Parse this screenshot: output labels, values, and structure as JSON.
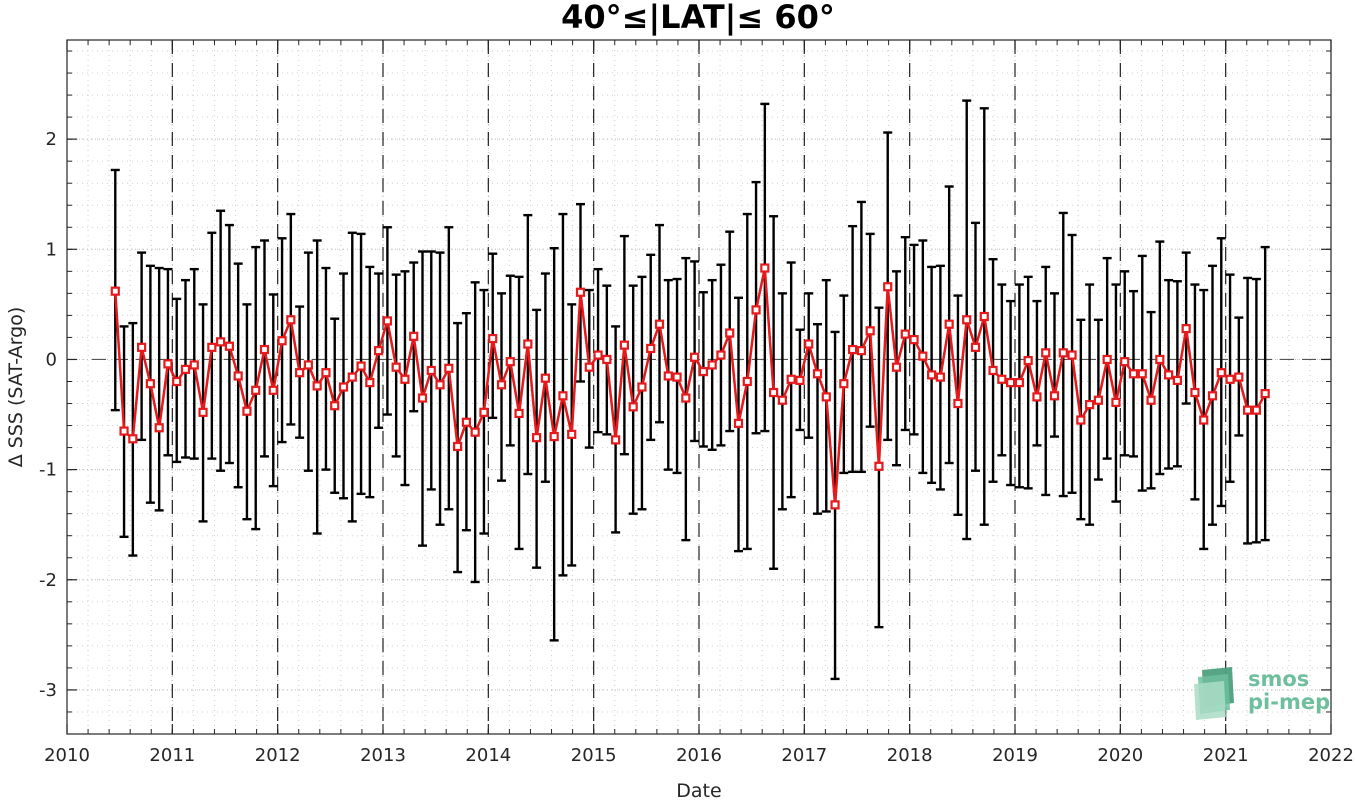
{
  "chart_data": {
    "type": "line",
    "title": "40°≤|LAT|≤ 60°",
    "xlabel": "Date",
    "ylabel": "Δ SSS (SAT-Argo)",
    "xlim": [
      2010,
      2022
    ],
    "ylim": [
      -3.4,
      2.9
    ],
    "xticks": [
      2010,
      2011,
      2012,
      2013,
      2014,
      2015,
      2016,
      2017,
      2018,
      2019,
      2020,
      2021,
      2022
    ],
    "xtick_labels": [
      "2010",
      "2011",
      "2012",
      "2013",
      "2014",
      "2015",
      "2016",
      "2017",
      "2018",
      "2019",
      "2020",
      "2021",
      "2022"
    ],
    "yticks": [
      -3,
      -2,
      -1,
      0,
      1,
      2
    ],
    "ytick_labels": [
      "-3",
      "-2",
      "-1",
      "0",
      "1",
      "2"
    ],
    "grid": true,
    "year_dashed_lines": true,
    "zero_dashed_line": true,
    "series": [
      {
        "color": "#e41a1c",
        "errorbar_color": "#000000",
        "marker": "square",
        "start": [
          2010,
          6
        ],
        "step": "monthly",
        "values": [
          0.62,
          -0.65,
          -0.72,
          0.11,
          -0.22,
          -0.62,
          -0.04,
          -0.2,
          -0.09,
          -0.05,
          -0.48,
          0.11,
          0.16,
          0.12,
          -0.15,
          -0.47,
          -0.28,
          0.09,
          -0.28,
          0.17,
          0.36,
          -0.12,
          -0.05,
          -0.24,
          -0.12,
          -0.42,
          -0.25,
          -0.16,
          -0.06,
          -0.21,
          0.08,
          0.35,
          -0.07,
          -0.18,
          0.21,
          -0.35,
          -0.1,
          -0.23,
          -0.08,
          -0.79,
          -0.57,
          -0.66,
          -0.48,
          0.19,
          -0.23,
          -0.02,
          -0.49,
          0.14,
          -0.71,
          -0.17,
          -0.7,
          -0.33,
          -0.68,
          0.61,
          -0.07,
          0.04,
          0.0,
          -0.73,
          0.13,
          -0.43,
          -0.25,
          0.1,
          0.32,
          -0.15,
          -0.16,
          -0.35,
          0.02,
          -0.11,
          -0.05,
          0.04,
          0.24,
          -0.58,
          -0.2,
          0.45,
          0.83,
          -0.3,
          -0.37,
          -0.18,
          -0.19,
          0.14,
          -0.13,
          -0.34,
          -1.32,
          -0.22,
          0.09,
          0.08,
          0.26,
          -0.97,
          0.66,
          -0.07,
          0.23,
          0.18,
          0.03,
          -0.14,
          -0.16,
          0.32,
          -0.4,
          0.36,
          0.11,
          0.39,
          -0.1,
          -0.18,
          -0.21,
          -0.21,
          -0.01,
          -0.34,
          0.06,
          -0.33,
          0.06,
          0.04,
          -0.55,
          -0.41,
          -0.37,
          0.0,
          -0.39,
          -0.02,
          -0.13,
          -0.13,
          -0.37,
          0.0,
          -0.14,
          -0.19,
          0.28,
          -0.3,
          -0.55,
          -0.33,
          -0.12,
          -0.18,
          -0.16,
          -0.46,
          -0.46,
          -0.31
        ],
        "upper": [
          1.72,
          0.3,
          0.33,
          0.97,
          0.85,
          0.83,
          0.82,
          0.55,
          0.72,
          0.82,
          0.5,
          1.15,
          1.35,
          1.22,
          0.87,
          0.5,
          1.02,
          1.08,
          0.59,
          1.1,
          1.32,
          0.48,
          0.97,
          1.08,
          0.83,
          0.37,
          0.78,
          1.15,
          1.14,
          0.84,
          0.78,
          1.2,
          0.77,
          0.8,
          0.88,
          0.98,
          0.98,
          0.97,
          1.2,
          0.33,
          0.42,
          0.7,
          0.63,
          0.96,
          0.6,
          0.76,
          0.75,
          1.31,
          0.45,
          0.78,
          1.01,
          1.32,
          0.5,
          1.41,
          0.63,
          0.82,
          0.67,
          0.3,
          1.12,
          0.67,
          0.75,
          0.95,
          1.22,
          0.72,
          0.73,
          0.92,
          0.89,
          0.61,
          0.72,
          0.86,
          1.16,
          0.56,
          1.32,
          1.61,
          2.32,
          1.3,
          0.6,
          0.88,
          0.27,
          0.6,
          0.32,
          0.72,
          0.25,
          0.58,
          1.21,
          1.43,
          1.14,
          0.47,
          2.06,
          0.8,
          1.11,
          1.04,
          1.08,
          0.84,
          0.85,
          1.57,
          0.58,
          2.35,
          1.24,
          2.28,
          0.91,
          0.68,
          0.53,
          0.68,
          0.75,
          0.53,
          0.84,
          0.6,
          1.33,
          1.13,
          0.36,
          0.68,
          0.36,
          0.92,
          0.68,
          0.8,
          0.62,
          0.94,
          0.43,
          1.07,
          0.72,
          0.71,
          0.97,
          0.68,
          0.63,
          0.85,
          1.1,
          0.77,
          0.38,
          0.74,
          0.73,
          1.02
        ],
        "lower": [
          -0.46,
          -1.61,
          -1.78,
          -0.73,
          -1.3,
          -1.37,
          -0.87,
          -0.93,
          -0.89,
          -0.9,
          -1.47,
          -0.9,
          -1.01,
          -0.94,
          -1.16,
          -1.45,
          -1.54,
          -0.88,
          -1.15,
          -0.75,
          -0.59,
          -0.71,
          -1.01,
          -1.58,
          -1.0,
          -1.21,
          -1.26,
          -1.47,
          -1.22,
          -1.25,
          -0.62,
          -0.5,
          -0.88,
          -1.14,
          -0.47,
          -1.69,
          -1.18,
          -1.5,
          -1.36,
          -1.93,
          -1.55,
          -2.02,
          -1.58,
          -0.53,
          -1.1,
          -0.78,
          -1.72,
          -1.04,
          -1.89,
          -1.11,
          -2.55,
          -1.96,
          -1.87,
          -0.2,
          -0.8,
          -0.66,
          -0.68,
          -1.57,
          -0.86,
          -1.4,
          -1.36,
          -0.73,
          -0.57,
          -1.0,
          -1.03,
          -1.64,
          -0.74,
          -0.79,
          -0.82,
          -0.78,
          -0.65,
          -1.74,
          -1.72,
          -0.67,
          -0.65,
          -1.9,
          -1.36,
          -1.25,
          -0.64,
          -0.71,
          -1.4,
          -1.38,
          -2.9,
          -1.03,
          -1.02,
          -1.02,
          -0.61,
          -2.43,
          -0.73,
          -0.96,
          -0.64,
          -0.68,
          -1.03,
          -1.12,
          -1.18,
          -0.94,
          -1.41,
          -1.63,
          -1.01,
          -1.5,
          -1.11,
          -0.87,
          -1.14,
          -1.16,
          -1.17,
          -0.78,
          -1.23,
          -0.7,
          -1.24,
          -1.21,
          -1.45,
          -1.5,
          -1.09,
          -0.9,
          -1.29,
          -0.87,
          -0.88,
          -1.19,
          -1.17,
          -1.04,
          -0.99,
          -0.97,
          -0.4,
          -1.27,
          -1.72,
          -1.5,
          -1.33,
          -1.11,
          -0.69,
          -1.67,
          -1.66,
          -1.64
        ]
      }
    ]
  },
  "logo": {
    "line1": "smos",
    "line2": "pi-mep",
    "color": "#6fbf9f"
  }
}
